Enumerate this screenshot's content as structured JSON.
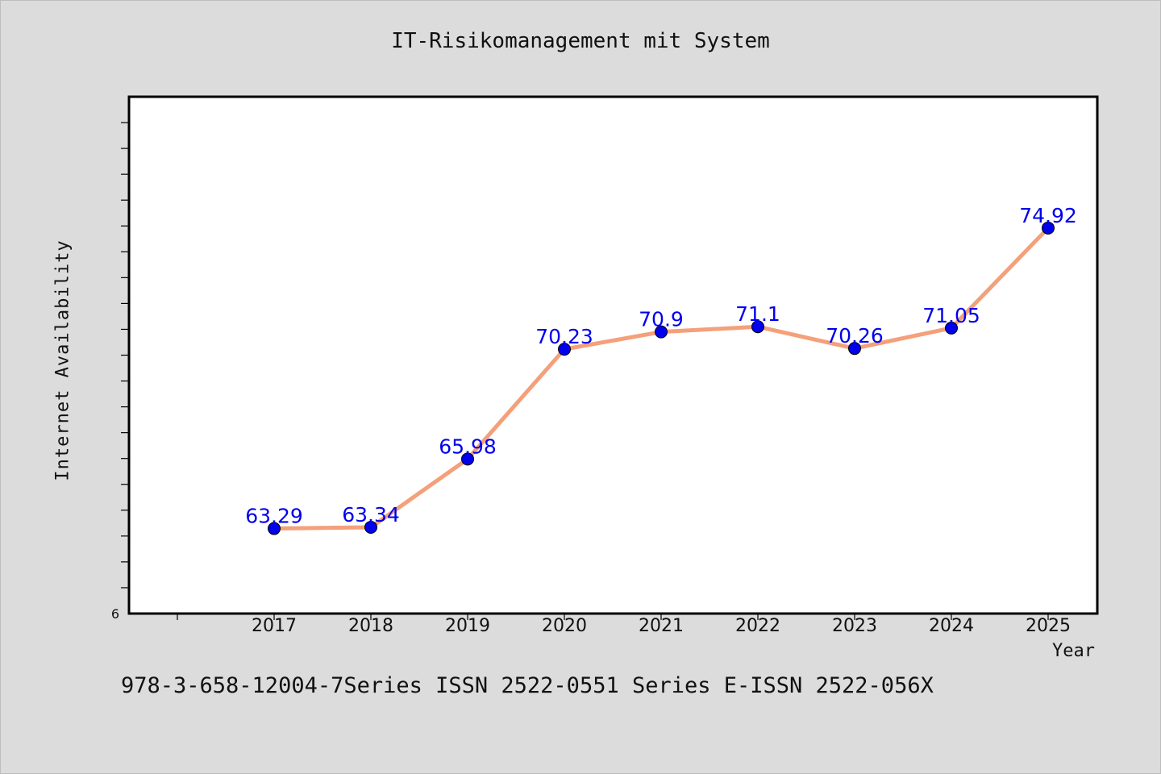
{
  "title": "IT-Risikomanagement mit System",
  "footer": "978-3-658-12004-7Series ISSN 2522-0551 Series E-ISSN 2522-056X",
  "colors": {
    "background": "#dcdcdc",
    "plot_bg": "#ffffff",
    "line": "#f4a07a",
    "marker": "#0000ee",
    "label": "#0000ee"
  },
  "chart_data": {
    "type": "line",
    "title": "IT-Risikomanagement mit System",
    "xlabel": "Year",
    "ylabel": "Internet Availability",
    "categories": [
      "2017",
      "2018",
      "2019",
      "2020",
      "2021",
      "2022",
      "2023",
      "2024",
      "2025"
    ],
    "series": [
      {
        "values": [
          63.29,
          63.34,
          65.98,
          70.23,
          70.9,
          71.1,
          70.26,
          71.05,
          74.92
        ]
      }
    ],
    "data_labels": [
      "63.29",
      "63.34",
      "65.98",
      "70.23",
      "70.9",
      "71.1",
      "70.26",
      "71.05",
      "74.92"
    ],
    "yticks": [
      "6"
    ],
    "ylim": [
      60,
      80
    ],
    "grid": false,
    "legend": "none"
  }
}
